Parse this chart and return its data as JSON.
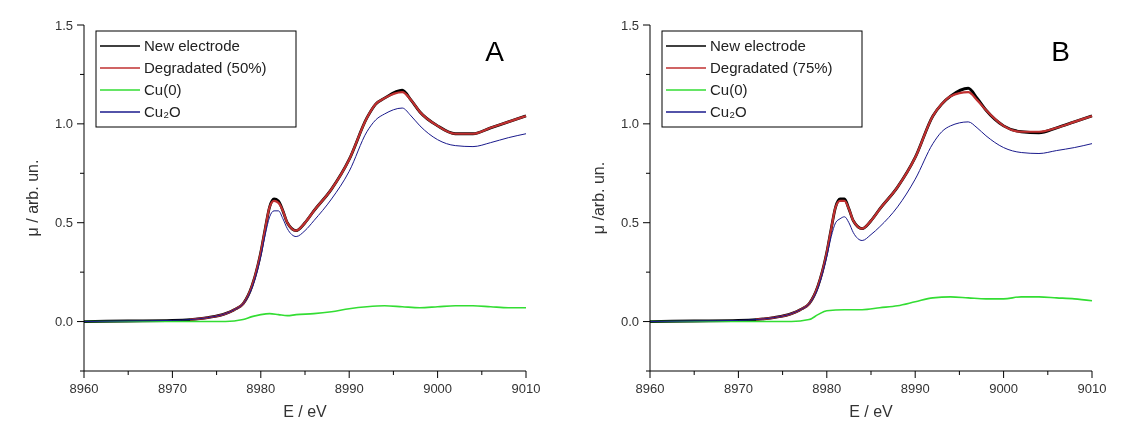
{
  "chart_data": [
    {
      "type": "line",
      "xlabel": "E / eV",
      "ylabel": "μ / arb. un.",
      "annotations": [
        "A"
      ],
      "xlim": [
        8960,
        9010
      ],
      "ylim": [
        -0.25,
        1.5
      ],
      "xticks": [
        8960,
        {
          "value": 8965,
          "label": null
        },
        8970,
        {
          "value": 8975,
          "label": null
        },
        8980,
        {
          "value": 8985,
          "label": null
        },
        8990,
        {
          "value": 8995,
          "label": null
        },
        9000,
        {
          "value": 9005,
          "label": null
        },
        9010
      ],
      "yticks": [
        {
          "value": -0.25,
          "label": null
        },
        {
          "value": 0,
          "label": "0.0"
        },
        {
          "value": 0.25,
          "label": null
        },
        {
          "value": 0.5,
          "label": "0.5"
        },
        {
          "value": 0.75,
          "label": null
        },
        {
          "value": 1,
          "label": "1.0"
        },
        {
          "value": 1.25,
          "label": null
        },
        {
          "value": 1.5,
          "label": "1.5"
        }
      ],
      "legend": "top left",
      "grid": false,
      "x": [
        8960,
        8965,
        8970,
        8972,
        8974,
        8976,
        8977,
        8978,
        8979,
        8980,
        8980.5,
        8981,
        8981.5,
        8982,
        8982.5,
        8983,
        8984,
        8985,
        8986,
        8988,
        8990,
        8992,
        8993,
        8994,
        8996,
        8997,
        8998,
        9000,
        9002,
        9004,
        9006,
        9008,
        9010
      ],
      "series": [
        {
          "name": "New electrode",
          "color": "#000000",
          "values": [
            0,
            0.003,
            0.006,
            0.01,
            0.02,
            0.04,
            0.06,
            0.09,
            0.18,
            0.35,
            0.47,
            0.58,
            0.62,
            0.61,
            0.56,
            0.5,
            0.46,
            0.5,
            0.56,
            0.67,
            0.82,
            1.03,
            1.1,
            1.13,
            1.17,
            1.12,
            1.06,
            0.99,
            0.95,
            0.95,
            0.98,
            1.01,
            1.04
          ]
        },
        {
          "name": "Degradated (50%)",
          "color": "#c03030",
          "values": [
            null,
            null,
            null,
            0.01,
            0.02,
            0.04,
            0.06,
            0.09,
            0.18,
            0.35,
            0.47,
            0.58,
            0.61,
            0.6,
            0.56,
            0.5,
            0.46,
            0.5,
            0.56,
            0.67,
            0.82,
            1.03,
            1.1,
            1.13,
            1.16,
            1.12,
            1.06,
            0.99,
            0.95,
            0.95,
            0.98,
            1.01,
            1.04
          ]
        },
        {
          "name": "Cu(0)",
          "color": "#33dd33",
          "x": [
            8960,
            8970,
            8976,
            8978,
            8979,
            8980,
            8981,
            8982,
            8983,
            8984,
            8986,
            8988,
            8990,
            8992,
            8994,
            8996,
            8998,
            9000,
            9002,
            9004,
            9006,
            9008,
            9010
          ],
          "values": [
            0,
            0,
            0,
            0.01,
            0.025,
            0.035,
            0.04,
            0.035,
            0.03,
            0.035,
            0.04,
            0.05,
            0.065,
            0.075,
            0.08,
            0.075,
            0.07,
            0.075,
            0.08,
            0.08,
            0.075,
            0.07,
            0.07
          ]
        },
        {
          "name": "Cu₂O",
          "color": "#1a1a8c",
          "values": [
            0,
            0.003,
            0.006,
            0.01,
            0.02,
            0.04,
            0.06,
            0.09,
            0.17,
            0.33,
            0.44,
            0.53,
            0.56,
            0.56,
            0.52,
            0.47,
            0.43,
            0.46,
            0.51,
            0.62,
            0.76,
            0.96,
            1.02,
            1.05,
            1.08,
            1.04,
            0.99,
            0.92,
            0.89,
            0.885,
            0.905,
            0.93,
            0.95
          ]
        }
      ]
    },
    {
      "type": "line",
      "xlabel": "E / eV",
      "ylabel": "μ /arb. un.",
      "annotations": [
        "B"
      ],
      "xlim": [
        8960,
        9010
      ],
      "ylim": [
        -0.25,
        1.5
      ],
      "xticks": [
        8960,
        {
          "value": 8965,
          "label": null
        },
        8970,
        {
          "value": 8975,
          "label": null
        },
        8980,
        {
          "value": 8985,
          "label": null
        },
        8990,
        {
          "value": 8995,
          "label": null
        },
        9000,
        {
          "value": 9005,
          "label": null
        },
        9010
      ],
      "yticks": [
        {
          "value": -0.25,
          "label": null
        },
        {
          "value": 0,
          "label": "0.0"
        },
        {
          "value": 0.25,
          "label": null
        },
        {
          "value": 0.5,
          "label": "0.5"
        },
        {
          "value": 0.75,
          "label": null
        },
        {
          "value": 1,
          "label": "1.0"
        },
        {
          "value": 1.25,
          "label": null
        },
        {
          "value": 1.5,
          "label": "1.5"
        }
      ],
      "legend": "top left",
      "grid": false,
      "x": [
        8960,
        8965,
        8970,
        8972,
        8974,
        8976,
        8977,
        8978,
        8979,
        8980,
        8980.5,
        8981,
        8981.5,
        8982,
        8982.5,
        8983,
        8984,
        8985,
        8986,
        8988,
        8990,
        8992,
        8993,
        8994,
        8996,
        8997,
        8998,
        9000,
        9002,
        9004,
        9006,
        9008,
        9010
      ],
      "series": [
        {
          "name": "New electrode",
          "color": "#000000",
          "values": [
            0,
            0.003,
            0.006,
            0.01,
            0.02,
            0.04,
            0.06,
            0.09,
            0.18,
            0.35,
            0.47,
            0.58,
            0.62,
            0.62,
            0.57,
            0.51,
            0.47,
            0.51,
            0.57,
            0.68,
            0.83,
            1.04,
            1.1,
            1.14,
            1.18,
            1.13,
            1.07,
            0.99,
            0.96,
            0.955,
            0.98,
            1.01,
            1.04
          ]
        },
        {
          "name": "Degradated  (75%)",
          "color": "#c03030",
          "values": [
            null,
            null,
            null,
            0.01,
            0.02,
            0.04,
            0.06,
            0.09,
            0.18,
            0.35,
            0.47,
            0.58,
            0.61,
            0.61,
            0.57,
            0.51,
            0.47,
            0.51,
            0.57,
            0.68,
            0.83,
            1.04,
            1.1,
            1.14,
            1.16,
            1.12,
            1.07,
            0.99,
            0.96,
            0.96,
            0.98,
            1.01,
            1.04
          ]
        },
        {
          "name": "Cu(0)",
          "color": "#33dd33",
          "x": [
            8960,
            8970,
            8976,
            8978,
            8979,
            8980,
            8982,
            8984,
            8986,
            8988,
            8990,
            8992,
            8994,
            8996,
            8998,
            9000,
            9002,
            9004,
            9006,
            9008,
            9010
          ],
          "values": [
            0,
            0,
            0,
            0.01,
            0.035,
            0.055,
            0.06,
            0.06,
            0.07,
            0.08,
            0.1,
            0.12,
            0.125,
            0.12,
            0.115,
            0.115,
            0.125,
            0.125,
            0.12,
            0.115,
            0.105
          ]
        },
        {
          "name": "Cu₂O",
          "color": "#1a1a8c",
          "values": [
            0,
            0.003,
            0.006,
            0.01,
            0.02,
            0.04,
            0.06,
            0.09,
            0.17,
            0.33,
            0.43,
            0.5,
            0.52,
            0.53,
            0.5,
            0.45,
            0.41,
            0.44,
            0.48,
            0.58,
            0.72,
            0.9,
            0.96,
            0.99,
            1.01,
            0.98,
            0.94,
            0.88,
            0.855,
            0.85,
            0.865,
            0.88,
            0.9
          ]
        }
      ]
    }
  ]
}
